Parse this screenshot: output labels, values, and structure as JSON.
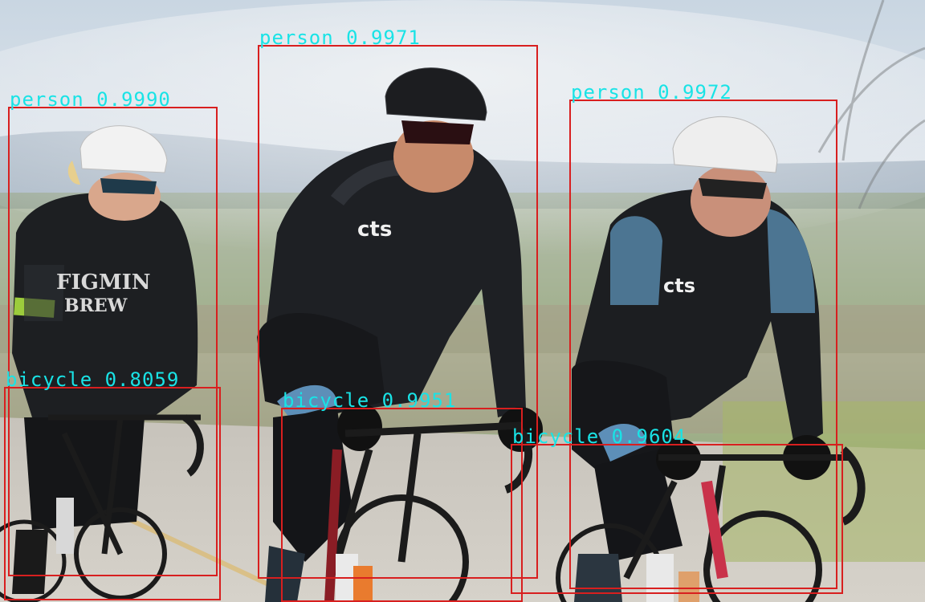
{
  "image": {
    "description_colors": {
      "box": "#d81f1f",
      "label": "#19e3e6"
    }
  },
  "detections": [
    {
      "id": "person-left",
      "label": "person",
      "score": "0.9990",
      "text": "person 0.9990"
    },
    {
      "id": "person-center",
      "label": "person",
      "score": "0.9971",
      "text": "person 0.9971"
    },
    {
      "id": "person-right",
      "label": "person",
      "score": "0.9972",
      "text": "person 0.9972"
    },
    {
      "id": "bicycle-left",
      "label": "bicycle",
      "score": "0.8059",
      "text": "bicycle 0.8059"
    },
    {
      "id": "bicycle-center",
      "label": "bicycle",
      "score": "0.9951",
      "text": "bicycle 0.9951"
    },
    {
      "id": "bicycle-right",
      "label": "bicycle",
      "score": "0.9604",
      "text": "bicycle 0.9604"
    }
  ]
}
